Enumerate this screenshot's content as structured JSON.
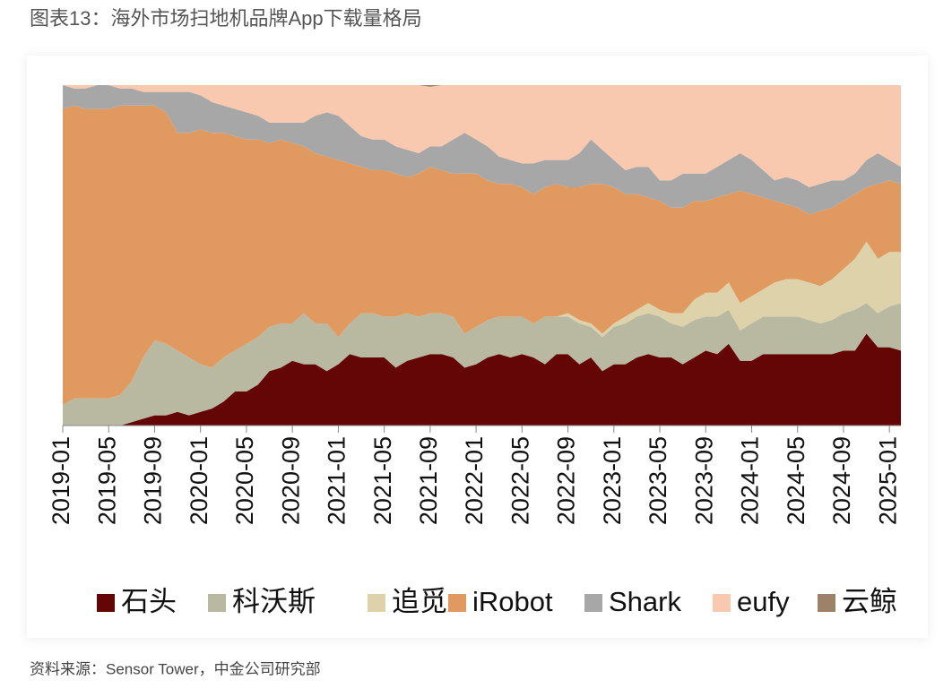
{
  "chart_data": {
    "type": "stacked_area",
    "title": "图表13：海外市场扫地机品牌App下载量格局",
    "source": "资料来源：Sensor Tower，中金公司研究部",
    "categories": [
      "2019-01",
      null,
      null,
      null,
      "2019-05",
      null,
      null,
      null,
      "2019-09",
      null,
      null,
      null,
      "2020-01",
      null,
      null,
      null,
      "2020-05",
      null,
      null,
      null,
      "2020-09",
      null,
      null,
      null,
      "2021-01",
      null,
      null,
      null,
      "2021-05",
      null,
      null,
      null,
      "2021-09",
      null,
      null,
      null,
      "2022-01",
      null,
      null,
      null,
      "2022-05",
      null,
      null,
      null,
      "2022-09",
      null,
      null,
      null,
      "2023-01",
      null,
      null,
      null,
      "2023-05",
      null,
      null,
      null,
      "2023-09",
      null,
      null,
      null,
      "2024-01",
      null,
      null,
      null,
      "2024-05",
      null,
      null,
      null,
      "2024-09",
      null,
      null,
      null,
      "2025-01",
      null
    ],
    "ylim": [
      0,
      100
    ],
    "series": [
      {
        "name": "石头",
        "color": "#650606",
        "values": [
          0,
          0,
          0,
          0,
          0,
          0,
          1,
          2,
          3,
          3,
          4,
          3,
          4,
          5,
          7,
          10,
          10,
          12,
          16,
          17,
          19,
          18,
          18,
          16,
          18,
          21,
          20,
          20,
          20,
          17,
          19,
          20,
          21,
          21,
          20,
          17,
          18,
          20,
          21,
          20,
          21,
          20,
          18,
          21,
          21,
          18,
          20,
          16,
          18,
          18,
          20,
          21,
          20,
          20,
          18,
          20,
          22,
          21,
          24,
          19,
          19,
          21,
          21,
          21,
          21,
          21,
          21,
          21,
          22,
          22,
          27,
          23,
          23,
          22
        ]
      },
      {
        "name": "科沃斯",
        "color": "#b9b9a2",
        "values": [
          6,
          8,
          8,
          8,
          8,
          9,
          12,
          18,
          22,
          21,
          18,
          17,
          14,
          12,
          13,
          12,
          14,
          14,
          13,
          13,
          11,
          15,
          12,
          14,
          8,
          9,
          13,
          13,
          12,
          15,
          14,
          12,
          12,
          12,
          12,
          10,
          11,
          11,
          11,
          12,
          11,
          10,
          14,
          11,
          11,
          12,
          9,
          10,
          11,
          12,
          12,
          12,
          12,
          10,
          11,
          11,
          10,
          11,
          10,
          9,
          11,
          11,
          11,
          11,
          11,
          10,
          9,
          10,
          11,
          12,
          9,
          10,
          12,
          14
        ]
      },
      {
        "name": "追觅",
        "color": "#ded2aa",
        "values": [
          0,
          0,
          0,
          0,
          0,
          0,
          0,
          0,
          0,
          0,
          0,
          0,
          0,
          0,
          0,
          0,
          0,
          0,
          0,
          0,
          0,
          0,
          0,
          0,
          0,
          0,
          0,
          0,
          0,
          0,
          0,
          0,
          0,
          0,
          0,
          0,
          0,
          0,
          0,
          0,
          0,
          0,
          0,
          0,
          1,
          1,
          1,
          1,
          1,
          2,
          2,
          3,
          2,
          3,
          4,
          6,
          7,
          7,
          8,
          8,
          8,
          8,
          10,
          11,
          11,
          11,
          11,
          12,
          13,
          15,
          18,
          16,
          16,
          15
        ]
      },
      {
        "name": "iRobot",
        "color": "#e09a60",
        "values": [
          87,
          86,
          85,
          85,
          85,
          85,
          81,
          74,
          69,
          68,
          64,
          66,
          69,
          69,
          66,
          63,
          60,
          58,
          54,
          54,
          53,
          49,
          50,
          49,
          52,
          47,
          43,
          42,
          43,
          42,
          40,
          42,
          43,
          42,
          42,
          47,
          45,
          41,
          39,
          39,
          38,
          38,
          38,
          39,
          37,
          39,
          41,
          44,
          40,
          36,
          34,
          31,
          32,
          31,
          31,
          29,
          27,
          28,
          26,
          33,
          30,
          27,
          24,
          22,
          21,
          20,
          22,
          21,
          20,
          19,
          16,
          22,
          21,
          20
        ]
      },
      {
        "name": "Shark",
        "color": "#a7a7a7",
        "values": [
          7,
          5,
          6,
          7,
          7,
          5,
          5,
          4,
          4,
          6,
          12,
          12,
          10,
          9,
          8,
          8,
          8,
          7,
          6,
          5,
          6,
          7,
          11,
          13,
          13,
          11,
          9,
          9,
          9,
          8,
          8,
          6,
          6,
          7,
          10,
          12,
          10,
          10,
          8,
          7,
          7,
          9,
          8,
          7,
          8,
          10,
          13,
          10,
          8,
          7,
          8,
          9,
          6,
          8,
          10,
          8,
          8,
          9,
          10,
          11,
          10,
          8,
          6,
          8,
          8,
          8,
          8,
          8,
          6,
          6,
          8,
          9,
          6,
          5
        ]
      },
      {
        "name": "eufy",
        "color": "#f8c9af",
        "values": [
          0,
          1,
          1,
          0,
          0,
          1,
          1,
          2,
          2,
          2,
          2,
          2,
          3,
          5,
          6,
          7,
          8,
          9,
          11,
          11,
          11,
          11,
          9,
          8,
          9,
          12,
          15,
          16,
          16,
          18,
          19,
          20,
          17.5,
          18,
          16,
          14,
          16,
          18,
          21,
          22,
          23,
          23,
          22,
          22,
          22,
          20,
          16,
          19,
          22,
          25,
          24,
          24,
          28,
          28,
          26,
          26,
          26,
          24,
          22,
          20,
          22,
          25,
          28,
          27,
          28,
          30,
          29,
          28,
          28,
          26,
          22,
          20,
          22,
          24
        ]
      },
      {
        "name": "云鲸",
        "color": "#9d8169",
        "values": [
          0,
          0,
          0,
          0,
          0,
          0,
          0,
          0,
          0,
          0,
          0,
          0,
          0,
          0,
          0,
          0,
          0,
          0,
          0,
          0,
          0,
          0,
          0,
          0,
          0,
          0,
          0,
          0,
          0,
          0,
          0,
          0,
          0.5,
          0,
          0,
          0,
          0,
          0,
          0,
          0,
          0,
          0,
          0,
          0,
          0,
          0,
          0,
          0,
          0,
          0,
          0,
          0,
          0,
          0,
          0,
          0,
          0,
          0,
          0,
          0,
          0,
          0,
          0,
          0,
          0,
          0,
          0,
          0,
          0,
          0,
          0,
          0,
          0,
          0
        ]
      }
    ]
  }
}
